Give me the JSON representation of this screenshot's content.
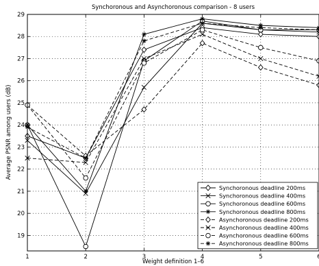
{
  "chart_data": {
    "type": "line",
    "title": "Synchoronous and Asynchoronous comparison - 8 users",
    "xlabel": "Weight definition 1–6",
    "ylabel": "Average PSNR among users (dB)",
    "xlim": [
      1,
      6
    ],
    "ylim": [
      18.3,
      29
    ],
    "xticks": [
      "1",
      "2",
      "3",
      "4",
      "5",
      "6"
    ],
    "yticks": [
      "19",
      "20",
      "21",
      "22",
      "23",
      "24",
      "25",
      "26",
      "27",
      "28",
      "29"
    ],
    "grid": true,
    "legend_position": "bottom-right",
    "x": [
      1,
      2,
      3,
      4,
      5,
      6
    ],
    "series": [
      {
        "name": "Synchoronous deadline 200ms",
        "marker": "diamond",
        "dash": "solid",
        "values": [
          23.5,
          22.5,
          27.4,
          28.4,
          28.1,
          28.0
        ]
      },
      {
        "name": "Synchoronous deadline 400ms",
        "marker": "x",
        "dash": "solid",
        "values": [
          23.3,
          20.9,
          25.7,
          28.6,
          28.3,
          28.2
        ]
      },
      {
        "name": "Synchoronous deadline 600ms",
        "marker": "circle",
        "dash": "solid",
        "values": [
          24.0,
          18.5,
          26.9,
          28.7,
          28.3,
          28.3
        ]
      },
      {
        "name": "Synchoronous deadline 800ms",
        "marker": "star",
        "dash": "solid",
        "values": [
          24.0,
          21.0,
          28.1,
          28.8,
          28.5,
          28.4
        ]
      },
      {
        "name": "Asynchoronous deadline 200ms",
        "marker": "diamond",
        "dash": "dashed",
        "values": [
          24.9,
          22.6,
          24.7,
          27.7,
          26.6,
          25.8
        ]
      },
      {
        "name": "Asynchoronous deadline 400ms",
        "marker": "x",
        "dash": "dashed",
        "values": [
          22.5,
          22.3,
          27.0,
          28.1,
          27.0,
          26.2
        ]
      },
      {
        "name": "Asynchoronous deadline 600ms",
        "marker": "circle",
        "dash": "dashed",
        "values": [
          24.9,
          21.6,
          26.8,
          28.3,
          27.5,
          26.9
        ]
      },
      {
        "name": "Asynchoronous deadline 800ms",
        "marker": "star",
        "dash": "dashed",
        "values": [
          23.9,
          22.5,
          27.8,
          28.6,
          28.4,
          28.3
        ]
      }
    ]
  }
}
